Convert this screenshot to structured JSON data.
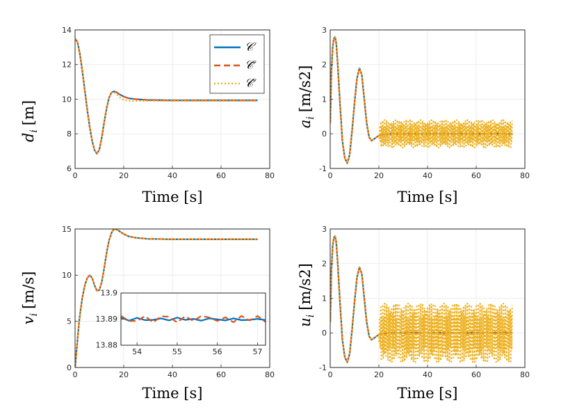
{
  "colors": {
    "C": "#0072BD",
    "Cbar": "#D95319",
    "Chat": "#EDB120"
  },
  "chart_data": [
    {
      "type": "line",
      "id": "d",
      "xlabel": "Time [s]",
      "ylabel_var": "d",
      "ylabel_sub": "i",
      "ylabel_unit": "[m]",
      "xlim": [
        0,
        80
      ],
      "ylim": [
        6,
        14
      ],
      "xticks": [
        "0",
        "20",
        "40",
        "60",
        "80"
      ],
      "yticks": [
        "6",
        "8",
        "10",
        "12",
        "14"
      ],
      "grid": true,
      "legend": {
        "position": "top-right",
        "entries": [
          "𝒞",
          "𝒞̄",
          "𝒞̂"
        ]
      },
      "series": [
        {
          "key": "C",
          "style": "solid",
          "x": [
            0,
            1,
            2,
            3,
            4,
            5,
            6,
            7,
            8,
            9,
            10,
            11,
            12,
            13,
            14,
            15,
            16,
            17,
            18,
            20,
            22,
            25,
            30,
            40,
            50,
            60,
            70,
            75
          ],
          "y": [
            13.5,
            13.3,
            12.6,
            11.6,
            10.5,
            9.4,
            8.4,
            7.6,
            7.05,
            6.85,
            7.1,
            7.8,
            8.7,
            9.5,
            10.1,
            10.4,
            10.45,
            10.4,
            10.3,
            10.15,
            10.05,
            10.0,
            9.95,
            9.93,
            9.93,
            9.93,
            9.93,
            9.93
          ]
        },
        {
          "key": "Cbar",
          "style": "dashed",
          "x": [
            0,
            1,
            2,
            3,
            4,
            5,
            6,
            7,
            8,
            9,
            10,
            11,
            12,
            13,
            14,
            15,
            16,
            17,
            18,
            20,
            22,
            25,
            30,
            40,
            50,
            60,
            70,
            75
          ],
          "y": [
            13.5,
            13.3,
            12.6,
            11.6,
            10.5,
            9.4,
            8.4,
            7.6,
            7.05,
            6.85,
            7.1,
            7.8,
            8.7,
            9.5,
            10.1,
            10.4,
            10.45,
            10.4,
            10.3,
            10.15,
            10.05,
            10.0,
            9.95,
            9.93,
            9.93,
            9.93,
            9.93,
            9.93
          ]
        },
        {
          "key": "Chat",
          "style": "dotted",
          "x": [
            0,
            1,
            2,
            3,
            4,
            5,
            6,
            7,
            8,
            9,
            10,
            11,
            12,
            13,
            14,
            15,
            16,
            17,
            18,
            20,
            22,
            25,
            30,
            40,
            50,
            60,
            70,
            75
          ],
          "y": [
            13.5,
            13.3,
            12.6,
            11.6,
            10.5,
            9.4,
            8.4,
            7.6,
            7.05,
            6.85,
            7.1,
            7.8,
            8.7,
            9.5,
            10.1,
            10.4,
            10.4,
            10.3,
            10.15,
            9.95,
            9.9,
            9.9,
            9.9,
            9.9,
            9.9,
            9.9,
            9.9,
            9.9
          ]
        }
      ]
    },
    {
      "type": "line",
      "id": "a",
      "xlabel": "Time [s]",
      "ylabel_var": "a",
      "ylabel_sub": "i",
      "ylabel_unit": "[m/s2]",
      "xlim": [
        0,
        80
      ],
      "ylim": [
        -1,
        3
      ],
      "xticks": [
        "0",
        "20",
        "40",
        "60",
        "80"
      ],
      "yticks": [
        "-1",
        "0",
        "1",
        "2",
        "3"
      ],
      "grid": true,
      "oscillation": {
        "series": "Chat",
        "from": 20,
        "to": 75,
        "amplitude": 0.4
      },
      "series": [
        {
          "key": "C",
          "style": "solid",
          "x": [
            0,
            0.5,
            1,
            1.5,
            2,
            2.5,
            3,
            4,
            5,
            6,
            7,
            8,
            9,
            10,
            11,
            12,
            13,
            14,
            15,
            16,
            17,
            18,
            19,
            20,
            22,
            25,
            30,
            40,
            50,
            60,
            70,
            75
          ],
          "y": [
            0.3,
            1.8,
            2.5,
            2.75,
            2.8,
            2.6,
            2.1,
            0.9,
            -0.2,
            -0.7,
            -0.85,
            -0.6,
            0.1,
            0.9,
            1.6,
            1.9,
            1.7,
            1.0,
            0.3,
            -0.1,
            -0.2,
            -0.15,
            -0.1,
            -0.05,
            -0.02,
            0.0,
            0.0,
            0.0,
            0.0,
            0.0,
            0.0,
            0.0
          ]
        },
        {
          "key": "Cbar",
          "style": "dashed",
          "x": [
            0,
            0.5,
            1,
            1.5,
            2,
            2.5,
            3,
            4,
            5,
            6,
            7,
            8,
            9,
            10,
            11,
            12,
            13,
            14,
            15,
            16,
            17,
            18,
            19,
            20,
            22,
            25,
            30,
            40,
            50,
            60,
            70,
            75
          ],
          "y": [
            0.3,
            1.8,
            2.5,
            2.75,
            2.8,
            2.6,
            2.1,
            0.9,
            -0.2,
            -0.7,
            -0.85,
            -0.6,
            0.1,
            0.9,
            1.6,
            1.9,
            1.7,
            1.0,
            0.3,
            -0.1,
            -0.2,
            -0.15,
            -0.1,
            -0.05,
            -0.02,
            0.0,
            0.0,
            0.0,
            0.0,
            0.0,
            0.0,
            0.0
          ]
        },
        {
          "key": "Chat",
          "style": "dotted",
          "x": [
            0,
            0.5,
            1,
            1.5,
            2,
            2.5,
            3,
            4,
            5,
            6,
            7,
            8,
            9,
            10,
            11,
            12,
            13,
            14,
            15,
            16,
            17,
            18,
            19,
            20
          ],
          "y": [
            0.3,
            1.8,
            2.5,
            2.75,
            2.8,
            2.6,
            2.1,
            0.9,
            -0.2,
            -0.7,
            -0.85,
            -0.6,
            0.1,
            0.9,
            1.6,
            1.9,
            1.7,
            1.0,
            0.3,
            -0.1,
            -0.2,
            -0.15,
            -0.1,
            -0.05
          ]
        }
      ]
    },
    {
      "type": "line",
      "id": "v",
      "xlabel": "Time [s]",
      "ylabel_var": "v",
      "ylabel_sub": "i",
      "ylabel_unit": "[m/s]",
      "xlim": [
        0,
        80
      ],
      "ylim": [
        0,
        15
      ],
      "xticks": [
        "0",
        "20",
        "40",
        "60",
        "80"
      ],
      "yticks": [
        "0",
        "5",
        "10",
        "15"
      ],
      "grid": true,
      "series": [
        {
          "key": "C",
          "style": "solid",
          "x": [
            0,
            0.5,
            1,
            1.5,
            2,
            3,
            4,
            5,
            6,
            7,
            8,
            9,
            10,
            11,
            12,
            13,
            14,
            15,
            16,
            17,
            18,
            20,
            22,
            25,
            30,
            40,
            50,
            60,
            70,
            75
          ],
          "y": [
            0,
            1.5,
            3.0,
            4.5,
            5.7,
            7.6,
            8.9,
            9.7,
            10.0,
            9.7,
            8.9,
            8.3,
            8.4,
            9.3,
            10.8,
            12.5,
            13.8,
            14.6,
            15.0,
            14.95,
            14.8,
            14.45,
            14.2,
            14.05,
            13.93,
            13.89,
            13.89,
            13.89,
            13.89,
            13.89
          ]
        },
        {
          "key": "Cbar",
          "style": "dashed",
          "x": [
            0,
            0.5,
            1,
            1.5,
            2,
            3,
            4,
            5,
            6,
            7,
            8,
            9,
            10,
            11,
            12,
            13,
            14,
            15,
            16,
            17,
            18,
            20,
            22,
            25,
            30,
            40,
            50,
            60,
            70,
            75
          ],
          "y": [
            0,
            1.5,
            3.0,
            4.5,
            5.7,
            7.6,
            8.9,
            9.7,
            10.0,
            9.7,
            8.9,
            8.3,
            8.4,
            9.3,
            10.8,
            12.5,
            13.8,
            14.6,
            15.0,
            14.95,
            14.8,
            14.45,
            14.2,
            14.05,
            13.93,
            13.89,
            13.89,
            13.89,
            13.89,
            13.89
          ]
        },
        {
          "key": "Chat",
          "style": "dotted",
          "x": [
            0,
            0.5,
            1,
            1.5,
            2,
            3,
            4,
            5,
            6,
            7,
            8,
            9,
            10,
            11,
            12,
            13,
            14,
            15,
            16,
            17,
            18,
            20,
            22,
            25,
            30,
            40,
            50,
            60,
            70,
            75
          ],
          "y": [
            0,
            1.5,
            3.0,
            4.5,
            5.7,
            7.6,
            8.9,
            9.7,
            10.0,
            9.7,
            8.9,
            8.3,
            8.4,
            9.3,
            10.8,
            12.5,
            13.8,
            14.6,
            15.0,
            14.95,
            14.8,
            14.45,
            14.2,
            14.05,
            13.93,
            13.89,
            13.89,
            13.89,
            13.89,
            13.89
          ]
        }
      ],
      "inset": {
        "xlim": [
          53.6,
          57.2
        ],
        "ylim": [
          13.88,
          13.9
        ],
        "xticks": [
          "54",
          "55",
          "56",
          "57"
        ],
        "yticks": [
          "13.88",
          "13.89",
          "13.9"
        ],
        "grid": true,
        "series": [
          {
            "key": "C",
            "style": "solid",
            "x": [
              53.6,
              53.8,
              54.0,
              54.2,
              54.4,
              54.6,
              54.8,
              55.0,
              55.2,
              55.4,
              55.6,
              55.8,
              56.0,
              56.2,
              56.4,
              56.6,
              56.8,
              57.0,
              57.2
            ],
            "y": [
              13.8906,
              13.8894,
              13.8905,
              13.8896,
              13.8897,
              13.8903,
              13.8895,
              13.8906,
              13.8897,
              13.8901,
              13.8894,
              13.8903,
              13.8899,
              13.8895,
              13.8903,
              13.8896,
              13.8897,
              13.8901,
              13.8896
            ]
          },
          {
            "key": "Cbar",
            "style": "dashed",
            "x": [
              53.6,
              53.8,
              54.0,
              54.2,
              54.4,
              54.6,
              54.8,
              55.0,
              55.2,
              55.4,
              55.6,
              55.8,
              56.0,
              56.2,
              56.4,
              56.6,
              56.8,
              57.0,
              57.2
            ],
            "y": [
              13.8912,
              13.8893,
              13.8893,
              13.8912,
              13.8887,
              13.8911,
              13.8909,
              13.8887,
              13.8911,
              13.8893,
              13.8912,
              13.8906,
              13.8893,
              13.8907,
              13.8888,
              13.8912,
              13.8895,
              13.8912,
              13.8889
            ]
          }
        ]
      }
    },
    {
      "type": "line",
      "id": "u",
      "xlabel": "Time [s]",
      "ylabel_var": "u",
      "ylabel_sub": "i",
      "ylabel_unit": "[m/s2]",
      "xlim": [
        0,
        80
      ],
      "ylim": [
        -1,
        3
      ],
      "xticks": [
        "0",
        "20",
        "40",
        "60",
        "80"
      ],
      "yticks": [
        "-1",
        "0",
        "1",
        "2",
        "3"
      ],
      "grid": true,
      "oscillation": {
        "series": "Chat",
        "from": 20,
        "to": 75,
        "amplitude": 0.85
      },
      "series": [
        {
          "key": "C",
          "style": "solid",
          "x": [
            0,
            0.5,
            1,
            1.5,
            2,
            2.5,
            3,
            4,
            5,
            6,
            7,
            8,
            9,
            10,
            11,
            12,
            13,
            14,
            15,
            16,
            17,
            18,
            19,
            20,
            22,
            25,
            30,
            40,
            50,
            60,
            70,
            75
          ],
          "y": [
            0.3,
            1.8,
            2.5,
            2.75,
            2.8,
            2.6,
            2.1,
            0.9,
            -0.2,
            -0.7,
            -0.85,
            -0.6,
            0.1,
            0.9,
            1.6,
            1.9,
            1.7,
            1.0,
            0.3,
            -0.1,
            -0.2,
            -0.15,
            -0.1,
            -0.05,
            -0.02,
            0.0,
            0.0,
            0.0,
            0.0,
            0.0,
            0.0,
            0.0
          ]
        },
        {
          "key": "Cbar",
          "style": "dashed",
          "x": [
            0,
            0.5,
            1,
            1.5,
            2,
            2.5,
            3,
            4,
            5,
            6,
            7,
            8,
            9,
            10,
            11,
            12,
            13,
            14,
            15,
            16,
            17,
            18,
            19,
            20,
            22,
            25,
            30,
            40,
            50,
            60,
            70,
            75
          ],
          "y": [
            0.3,
            1.8,
            2.5,
            2.75,
            2.8,
            2.6,
            2.1,
            0.9,
            -0.2,
            -0.7,
            -0.85,
            -0.6,
            0.1,
            0.9,
            1.6,
            1.9,
            1.7,
            1.0,
            0.3,
            -0.1,
            -0.2,
            -0.15,
            -0.1,
            -0.05,
            -0.02,
            0.0,
            0.0,
            0.0,
            0.0,
            0.0,
            0.0,
            0.0
          ]
        },
        {
          "key": "Chat",
          "style": "dotted",
          "x": [
            0,
            0.5,
            1,
            1.5,
            2,
            2.5,
            3,
            4,
            5,
            6,
            7,
            8,
            9,
            10,
            11,
            12,
            13,
            14,
            15,
            16,
            17,
            18,
            19,
            20
          ],
          "y": [
            0.3,
            1.8,
            2.5,
            2.75,
            2.8,
            2.6,
            2.1,
            0.9,
            -0.2,
            -0.7,
            -0.85,
            -0.6,
            0.1,
            0.9,
            1.6,
            1.9,
            1.7,
            1.0,
            0.3,
            -0.1,
            -0.2,
            -0.15,
            -0.1,
            -0.05
          ]
        }
      ]
    }
  ]
}
